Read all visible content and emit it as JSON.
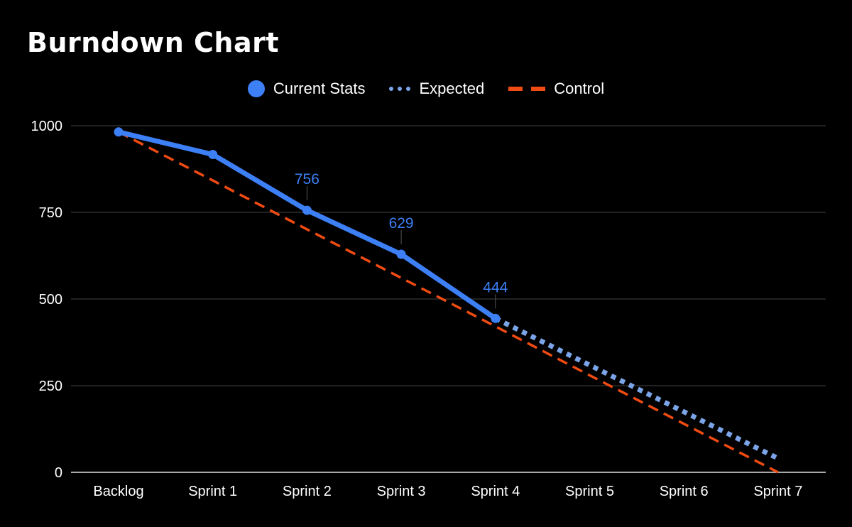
{
  "chart_data": {
    "type": "line",
    "title": "Burndown Chart",
    "xlabel": "",
    "ylabel": "",
    "categories": [
      "Backlog",
      "Sprint 1",
      "Sprint 2",
      "Sprint 3",
      "Sprint 4",
      "Sprint 5",
      "Sprint 6",
      "Sprint 7"
    ],
    "ylim": [
      0,
      1000
    ],
    "yticks": [
      "1000",
      "750",
      "500",
      "250",
      "0"
    ],
    "grid": true,
    "legend_position": "top-center",
    "series": [
      {
        "name": "Current Stats",
        "key": "current",
        "color": "#3d7ff5",
        "style": "solid",
        "markers": true,
        "values": [
          982,
          917,
          756,
          629,
          444,
          null,
          null,
          null
        ],
        "data_labels": [
          null,
          null,
          "756",
          "629",
          "444",
          null,
          null,
          null
        ]
      },
      {
        "name": "Expected",
        "key": "expected",
        "color": "#7ca4e8",
        "style": "dotted",
        "markers": false,
        "values": [
          null,
          null,
          null,
          null,
          444,
          null,
          null,
          40
        ]
      },
      {
        "name": "Control",
        "key": "control",
        "color": "#f04b12",
        "style": "dashed",
        "markers": false,
        "values": [
          982,
          842,
          701,
          561,
          421,
          280,
          140,
          0
        ]
      }
    ]
  }
}
